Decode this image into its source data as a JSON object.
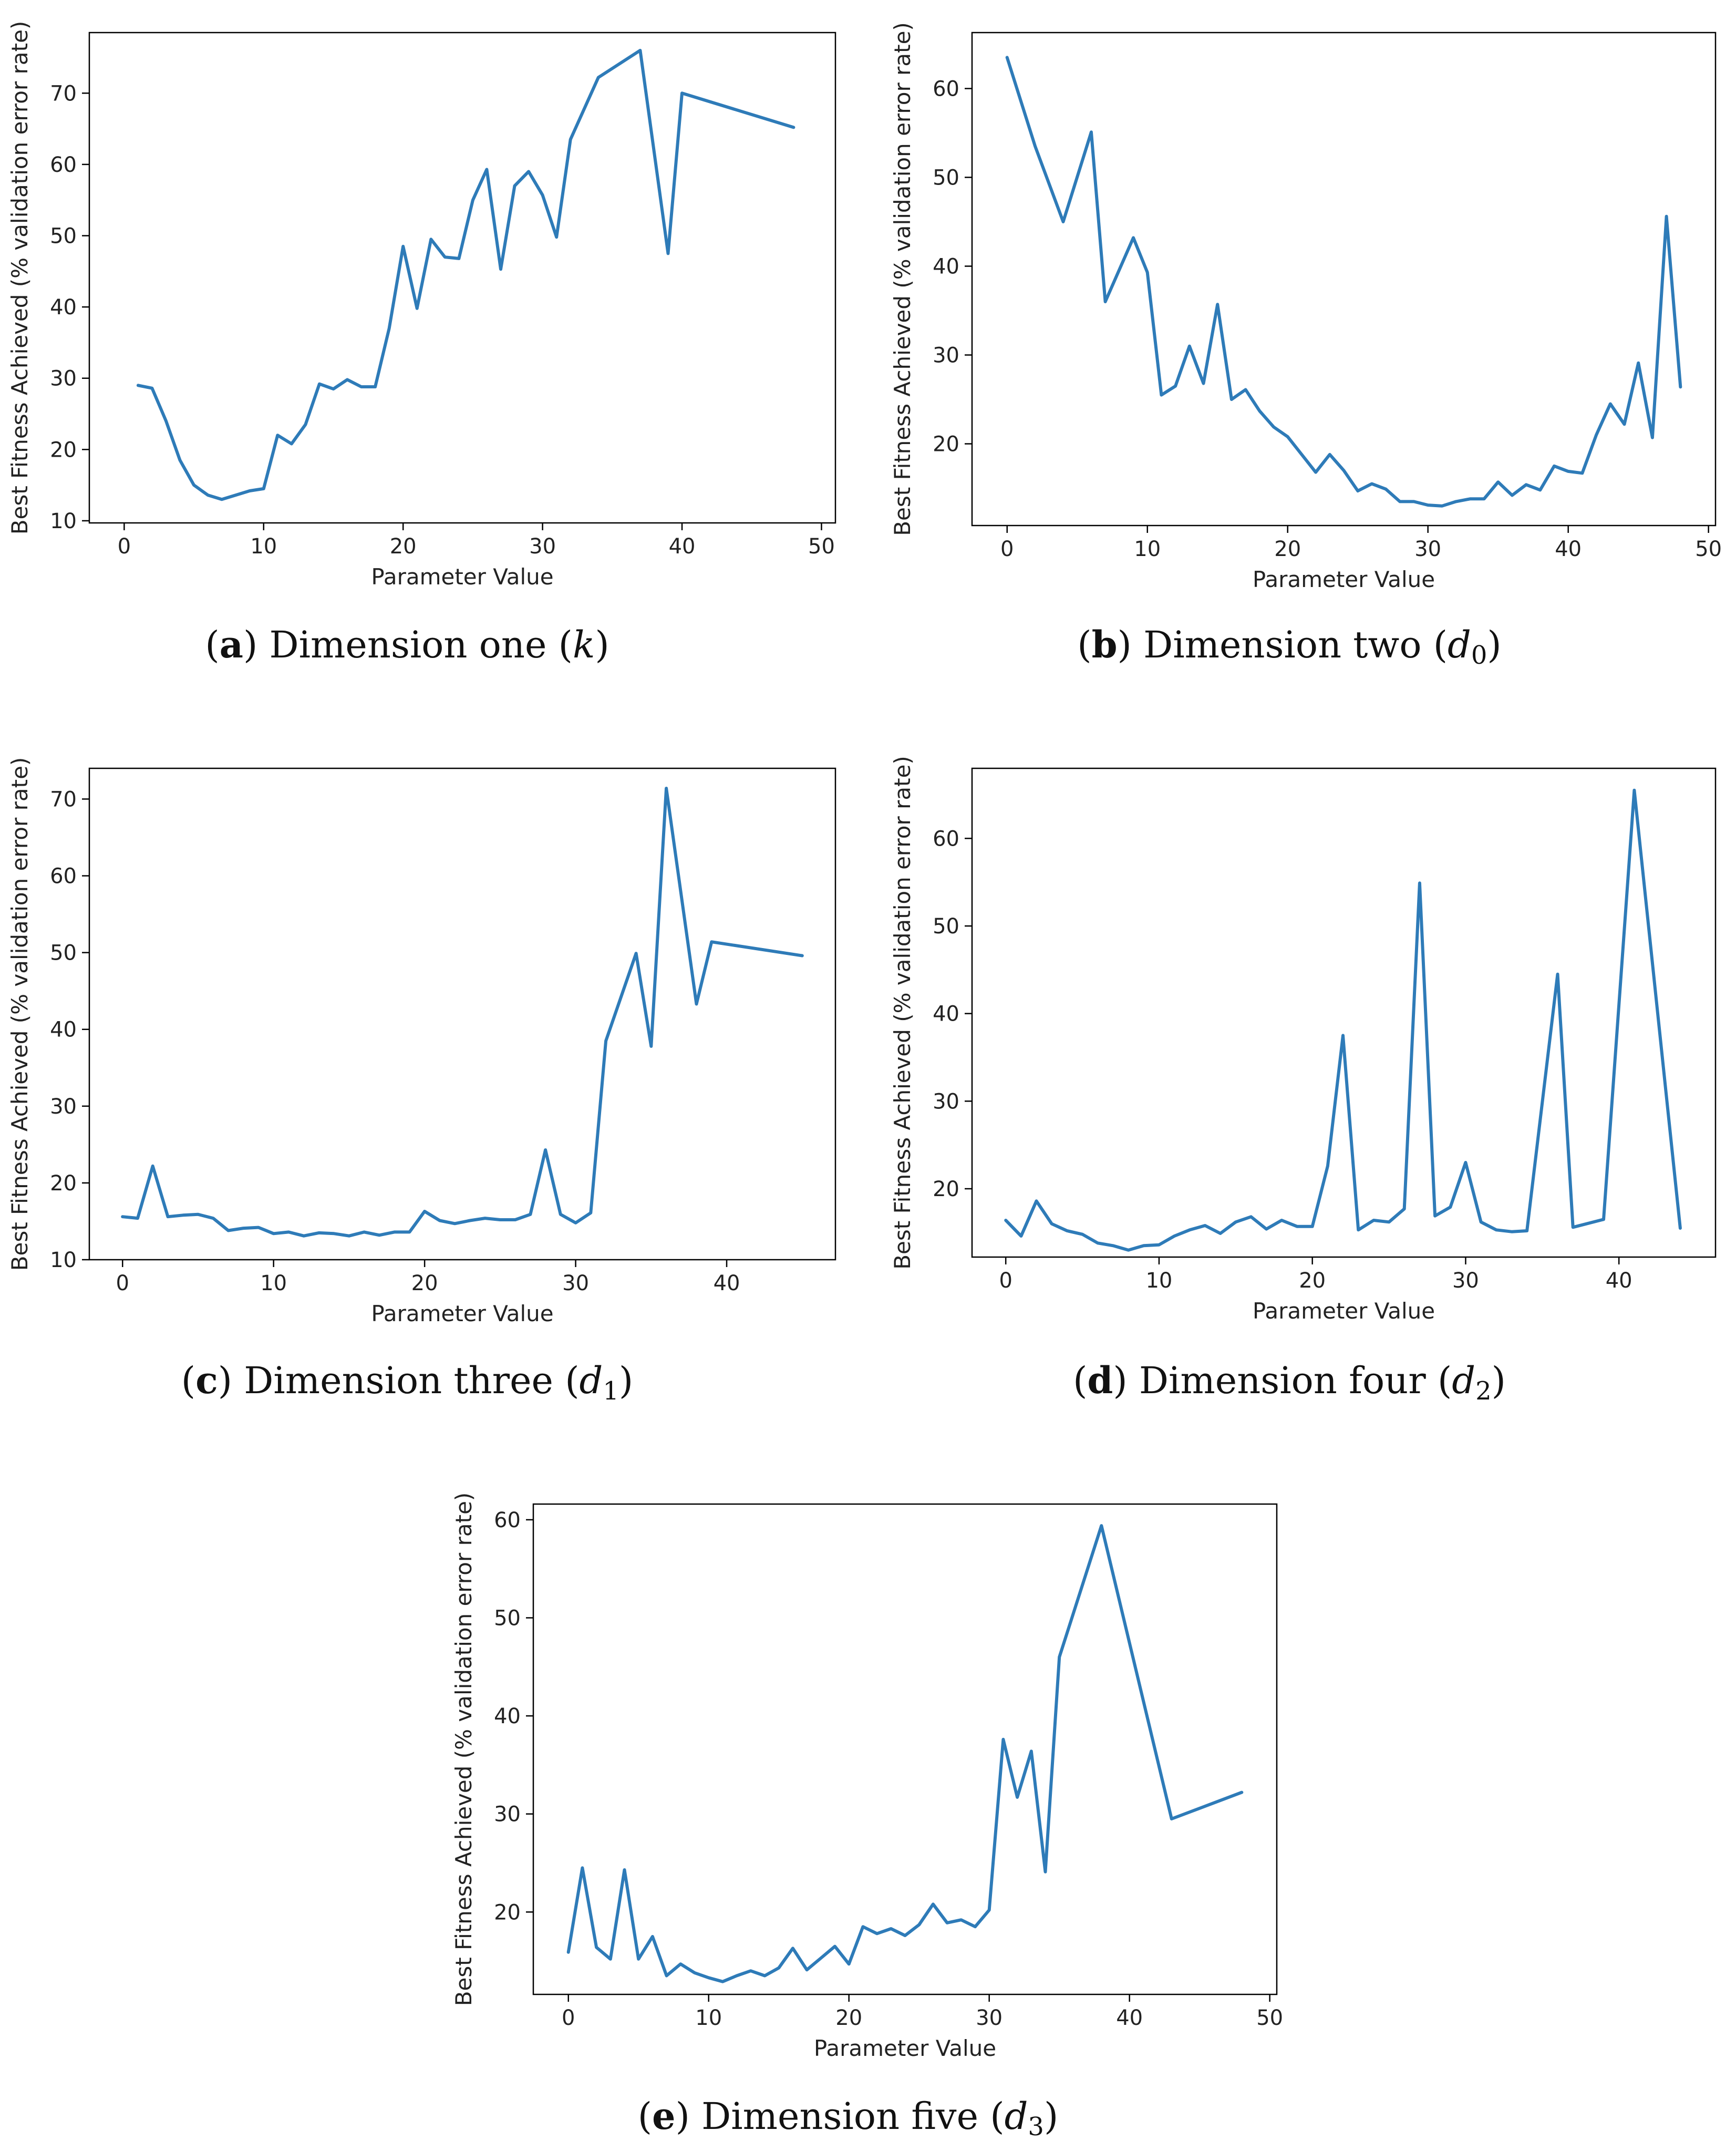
{
  "figure": {
    "line_color": "#2e7bb8",
    "panels": [
      {
        "letter": "a",
        "caption_text": "Dimension one",
        "caption_symbol": "k",
        "caption_sub": ""
      },
      {
        "letter": "b",
        "caption_text": "Dimension two",
        "caption_symbol": "d",
        "caption_sub": "0"
      },
      {
        "letter": "c",
        "caption_text": "Dimension three",
        "caption_symbol": "d",
        "caption_sub": "1"
      },
      {
        "letter": "d",
        "caption_text": "Dimension four",
        "caption_symbol": "d",
        "caption_sub": "2"
      },
      {
        "letter": "e",
        "caption_text": "Dimension five",
        "caption_symbol": "d",
        "caption_sub": "3"
      }
    ]
  },
  "chart_data": [
    {
      "type": "line",
      "xlabel": "Parameter Value",
      "ylabel": "Best Fitness Achieved (% validation error rate)",
      "xlim": [
        -2.5,
        51
      ],
      "ylim": [
        9.7,
        78.5
      ],
      "xticks": [
        0,
        10,
        20,
        30,
        40,
        50
      ],
      "yticks": [
        10,
        20,
        30,
        40,
        50,
        60,
        70
      ],
      "x": [
        1,
        2,
        3,
        4,
        5,
        6,
        7,
        8,
        9,
        10,
        11,
        12,
        13,
        14,
        15,
        16,
        17,
        18,
        19,
        20,
        21,
        22,
        23,
        24,
        25,
        26,
        27,
        28,
        29,
        30,
        31,
        32,
        34,
        37,
        39,
        40,
        48
      ],
      "y": [
        29,
        28.6,
        24,
        18.5,
        15,
        13.6,
        13,
        13.6,
        14.2,
        14.5,
        22,
        20.8,
        23.5,
        29.2,
        28.5,
        29.8,
        28.8,
        28.8,
        37,
        48.5,
        39.8,
        49.5,
        47,
        46.8,
        55,
        59.3,
        45.3,
        57,
        59,
        55.7,
        49.8,
        63.5,
        72.2,
        76,
        47.5,
        70,
        65.2
      ]
    },
    {
      "type": "line",
      "xlabel": "Parameter Value",
      "ylabel": "Best Fitness Achieved (% validation error rate)",
      "xlim": [
        -2.5,
        50.5
      ],
      "ylim": [
        10.8,
        66.3
      ],
      "xticks": [
        0,
        10,
        20,
        30,
        40,
        50
      ],
      "yticks": [
        20,
        30,
        40,
        50,
        60
      ],
      "x": [
        0,
        2,
        4,
        6,
        7,
        9,
        10,
        11,
        12,
        13,
        14,
        15,
        16,
        17,
        18,
        19,
        20,
        21,
        22,
        23,
        24,
        25,
        26,
        27,
        28,
        29,
        30,
        31,
        32,
        33,
        34,
        35,
        36,
        37,
        38,
        39,
        40,
        41,
        42,
        43,
        44,
        45,
        46,
        47,
        48
      ],
      "y": [
        63.5,
        53.5,
        45,
        55.1,
        36,
        43.2,
        39.3,
        25.5,
        26.5,
        31,
        26.8,
        35.7,
        25,
        26.1,
        23.7,
        21.9,
        20.8,
        18.8,
        16.8,
        18.8,
        17,
        14.7,
        15.5,
        14.9,
        13.5,
        13.5,
        13.1,
        13,
        13.5,
        13.8,
        13.8,
        15.7,
        14.2,
        15.4,
        14.8,
        17.5,
        16.9,
        16.7,
        21,
        24.5,
        22.2,
        29.1,
        20.7,
        45.6,
        26.4
      ]
    },
    {
      "type": "line",
      "xlabel": "Parameter Value",
      "ylabel": "Best Fitness Achieved (% validation error rate)",
      "xlim": [
        -2.2,
        47.2
      ],
      "ylim": [
        10,
        74
      ],
      "xticks": [
        0,
        10,
        20,
        30,
        40
      ],
      "yticks": [
        10,
        20,
        30,
        40,
        50,
        60,
        70
      ],
      "x": [
        0,
        1,
        2,
        3,
        4,
        5,
        6,
        7,
        8,
        9,
        10,
        11,
        12,
        13,
        14,
        15,
        16,
        17,
        18,
        19,
        20,
        21,
        22,
        23,
        24,
        25,
        26,
        27,
        28,
        29,
        30,
        31,
        32,
        34,
        35,
        36,
        38,
        39,
        45
      ],
      "y": [
        15.6,
        15.4,
        22.2,
        15.6,
        15.8,
        15.9,
        15.4,
        13.8,
        14.1,
        14.2,
        13.4,
        13.6,
        13.1,
        13.5,
        13.4,
        13.1,
        13.6,
        13.2,
        13.6,
        13.6,
        16.3,
        15.1,
        14.7,
        15.1,
        15.4,
        15.2,
        15.2,
        15.9,
        24.3,
        15.9,
        14.8,
        16.1,
        38.5,
        49.9,
        37.8,
        71.4,
        43.3,
        51.4,
        49.6
      ]
    },
    {
      "type": "line",
      "xlabel": "Parameter Value",
      "ylabel": "Best Fitness Achieved (% validation error rate)",
      "xlim": [
        -2.2,
        46.3
      ],
      "ylim": [
        12.2,
        68
      ],
      "xticks": [
        0,
        10,
        20,
        30,
        40
      ],
      "yticks": [
        20,
        30,
        40,
        50,
        60
      ],
      "x": [
        0,
        1,
        2,
        3,
        4,
        5,
        6,
        7,
        8,
        9,
        10,
        11,
        12,
        13,
        14,
        15,
        16,
        17,
        18,
        19,
        20,
        21,
        22,
        23,
        24,
        25,
        26,
        27,
        28,
        29,
        30,
        31,
        32,
        33,
        34,
        36,
        37,
        39,
        41,
        44
      ],
      "y": [
        16.4,
        14.6,
        18.6,
        16,
        15.2,
        14.8,
        13.8,
        13.5,
        13,
        13.5,
        13.6,
        14.6,
        15.3,
        15.8,
        14.9,
        16.2,
        16.8,
        15.4,
        16.4,
        15.7,
        15.7,
        22.6,
        37.5,
        15.3,
        16.4,
        16.2,
        17.7,
        54.9,
        16.9,
        17.9,
        23,
        16.2,
        15.3,
        15.1,
        15.2,
        44.5,
        15.6,
        16.5,
        65.5,
        15.5
      ]
    },
    {
      "type": "line",
      "xlabel": "Parameter Value",
      "ylabel": "Best Fitness Achieved (% validation error rate)",
      "xlim": [
        -2.5,
        50.5
      ],
      "ylim": [
        11.6,
        61.6
      ],
      "xticks": [
        0,
        10,
        20,
        30,
        40,
        50
      ],
      "yticks": [
        20,
        30,
        40,
        50,
        60
      ],
      "x": [
        0,
        1,
        2,
        3,
        4,
        5,
        6,
        7,
        8,
        9,
        10,
        11,
        12,
        13,
        14,
        15,
        16,
        17,
        18,
        19,
        20,
        21,
        22,
        23,
        24,
        25,
        26,
        27,
        28,
        29,
        30,
        31,
        32,
        33,
        34,
        35,
        38,
        43,
        48
      ],
      "y": [
        15.9,
        24.5,
        16.4,
        15.2,
        24.3,
        15.2,
        17.5,
        13.5,
        14.7,
        13.8,
        13.3,
        12.9,
        13.5,
        14,
        13.5,
        14.3,
        16.3,
        14.1,
        15.3,
        16.5,
        14.7,
        18.5,
        17.8,
        18.3,
        17.6,
        18.7,
        20.8,
        18.9,
        19.2,
        18.5,
        20.2,
        37.6,
        31.7,
        36.4,
        24.1,
        46,
        59.4,
        29.5,
        32.2
      ]
    }
  ]
}
